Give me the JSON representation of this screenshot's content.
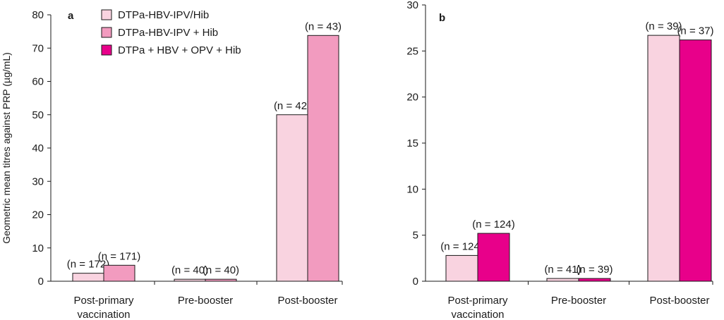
{
  "colors": {
    "series_0": "#f9d3e0",
    "series_1": "#f29bbf",
    "series_2": "#e8008a",
    "stroke": "#1a1a1a"
  },
  "legend": {
    "items": [
      {
        "label": "DTPa-HBV-IPV/Hib",
        "color": "#f9d3e0"
      },
      {
        "label": "DTPa-HBV-IPV + Hib",
        "color": "#f29bbf"
      },
      {
        "label": "DTPa + HBV + OPV + Hib",
        "color": "#e8008a"
      }
    ]
  },
  "chart_data": [
    {
      "type": "bar",
      "panel_label": "a",
      "ylabel": "Geometric mean titres against PRP (µg/mL)",
      "ylim": [
        0,
        80
      ],
      "yticks": [
        0,
        10,
        20,
        30,
        40,
        50,
        60,
        70,
        80
      ],
      "categories": [
        [
          "Post-primary",
          "vaccination"
        ],
        [
          "Pre-booster"
        ],
        [
          "Post-booster"
        ]
      ],
      "series": [
        {
          "name": "DTPa-HBV-IPV/Hib",
          "values": [
            2.4,
            0.6,
            50
          ],
          "labels": [
            "(n = 172)",
            "(n = 40)",
            "(n = 42)"
          ]
        },
        {
          "name": "DTPa-HBV-IPV + Hib",
          "values": [
            4.8,
            0.6,
            73.8
          ],
          "labels": [
            "(n = 171)",
            "(n = 40)",
            "(n = 43)"
          ]
        }
      ]
    },
    {
      "type": "bar",
      "panel_label": "b",
      "ylabel": "",
      "ylim": [
        0,
        30
      ],
      "yticks": [
        0,
        5,
        10,
        15,
        20,
        25,
        30
      ],
      "categories": [
        [
          "Post-primary",
          "vaccination"
        ],
        [
          "Pre-booster"
        ],
        [
          "Post-booster"
        ]
      ],
      "series": [
        {
          "name": "DTPa-HBV-IPV/Hib",
          "values": [
            2.8,
            0.3,
            26.7
          ],
          "labels": [
            "(n = 124)",
            "(n = 41)",
            "(n = 39)"
          ]
        },
        {
          "name": "DTPa + HBV + OPV + Hib",
          "values": [
            5.2,
            0.3,
            26.2
          ],
          "labels": [
            "(n = 124)",
            "(n = 39)",
            "(n = 37)"
          ]
        }
      ]
    }
  ]
}
